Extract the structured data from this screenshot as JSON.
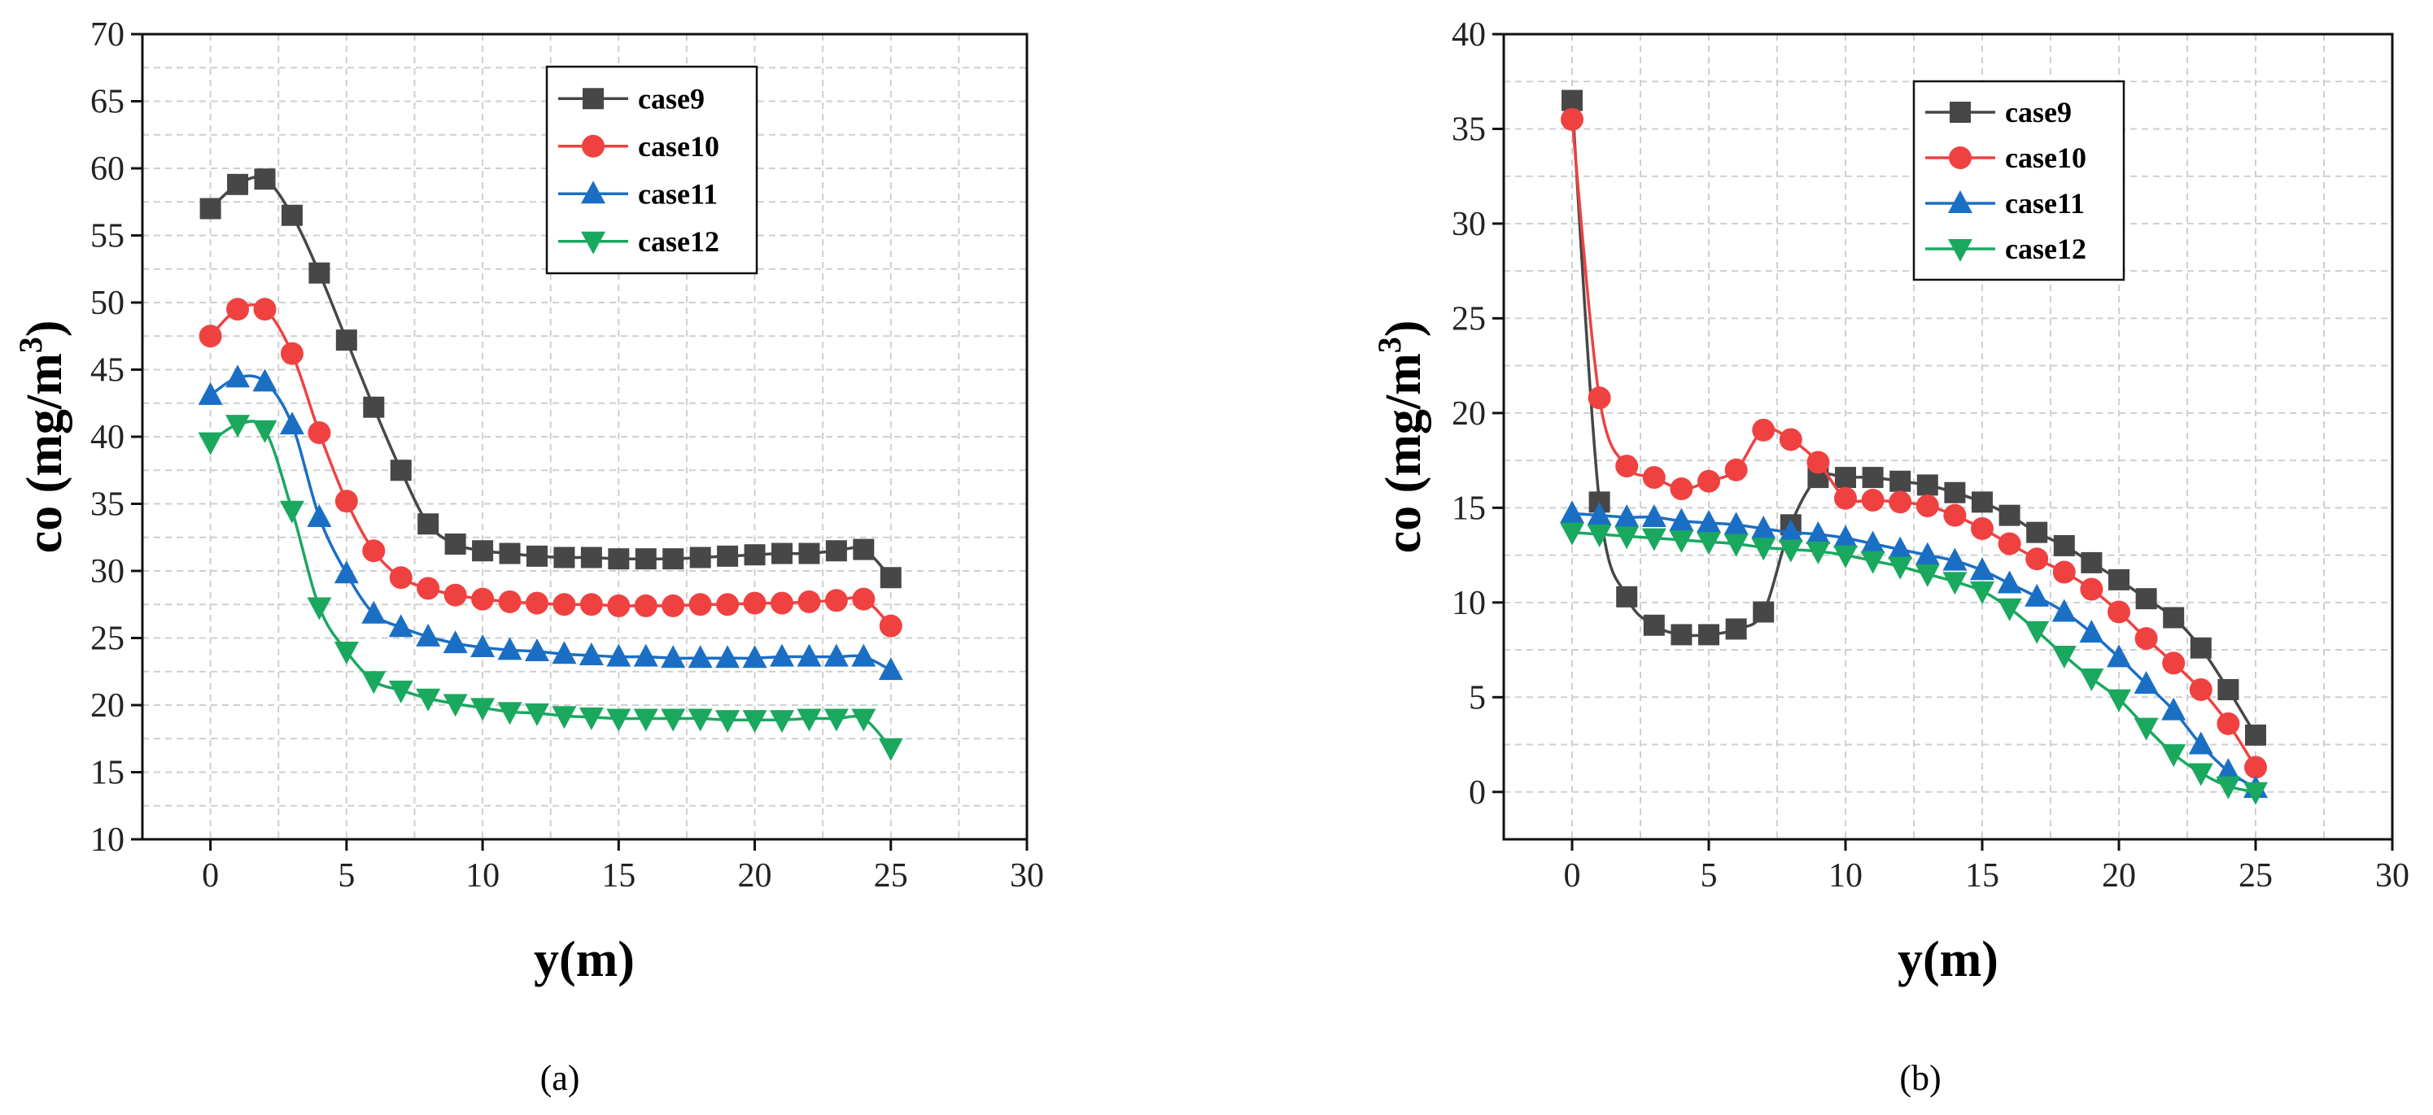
{
  "chart_data": [
    {
      "panel_label": "(a)",
      "type": "line",
      "xlabel": "y(m)",
      "ylabel": "co (mg/m",
      "ylabel_sup": "3",
      "ylabel_close": ")",
      "xlim": [
        -2.5,
        30
      ],
      "ylim": [
        10,
        70
      ],
      "xticks": [
        0,
        5,
        10,
        15,
        20,
        25,
        30
      ],
      "yticks": [
        10,
        15,
        20,
        25,
        30,
        35,
        40,
        45,
        50,
        55,
        60,
        65,
        70
      ],
      "grid": true,
      "legend_position": "top-center",
      "x": [
        0,
        1,
        2,
        3,
        4,
        5,
        6,
        7,
        8,
        9,
        10,
        11,
        12,
        13,
        14,
        15,
        16,
        17,
        18,
        19,
        20,
        21,
        22,
        23,
        24,
        25
      ],
      "series": [
        {
          "name": "case9",
          "color": "#474747",
          "marker": "square",
          "values": [
            57,
            58.8,
            59.2,
            56.5,
            52.2,
            47.2,
            42.2,
            37.5,
            33.5,
            32,
            31.5,
            31.3,
            31.1,
            31,
            31,
            30.9,
            30.9,
            30.9,
            31,
            31.1,
            31.2,
            31.3,
            31.3,
            31.5,
            31.6,
            29.5
          ]
        },
        {
          "name": "case10",
          "color": "#f04141",
          "marker": "circle",
          "values": [
            47.5,
            49.5,
            49.5,
            46.2,
            40.3,
            35.2,
            31.5,
            29.5,
            28.7,
            28.2,
            27.9,
            27.7,
            27.6,
            27.5,
            27.5,
            27.4,
            27.4,
            27.4,
            27.5,
            27.5,
            27.6,
            27.6,
            27.7,
            27.8,
            27.9,
            25.9
          ]
        },
        {
          "name": "case11",
          "color": "#1a6fc4",
          "marker": "triangle-up",
          "values": [
            43.1,
            44.4,
            44.1,
            40.9,
            34,
            29.8,
            26.8,
            25.8,
            25.1,
            24.6,
            24.3,
            24.1,
            24,
            23.8,
            23.7,
            23.6,
            23.6,
            23.5,
            23.5,
            23.5,
            23.5,
            23.6,
            23.6,
            23.6,
            23.6,
            22.6
          ]
        },
        {
          "name": "case12",
          "color": "#1aa85f",
          "marker": "triangle-down",
          "values": [
            39.6,
            40.9,
            40.5,
            34.5,
            27.3,
            24,
            21.8,
            21.1,
            20.5,
            20.1,
            19.8,
            19.5,
            19.4,
            19.2,
            19.1,
            19,
            19,
            19,
            19,
            18.9,
            18.9,
            18.9,
            19,
            19,
            19,
            16.8
          ]
        }
      ]
    },
    {
      "panel_label": "(b)",
      "type": "line",
      "xlabel": "y(m)",
      "ylabel": "co (mg/m",
      "ylabel_sup": "3",
      "ylabel_close": ")",
      "xlim": [
        -2.5,
        30
      ],
      "ylim": [
        -2.5,
        40
      ],
      "xticks": [
        0,
        5,
        10,
        15,
        20,
        25,
        30
      ],
      "yticks": [
        0,
        5,
        10,
        15,
        20,
        25,
        30,
        35,
        40
      ],
      "grid": true,
      "legend_position": "top-right",
      "x": [
        0,
        1,
        2,
        3,
        4,
        5,
        6,
        7,
        8,
        9,
        10,
        11,
        12,
        13,
        14,
        15,
        16,
        17,
        18,
        19,
        20,
        21,
        22,
        23,
        24,
        25
      ],
      "series": [
        {
          "name": "case9",
          "color": "#474747",
          "marker": "square",
          "values": [
            36.5,
            15.3,
            10.3,
            8.8,
            8.3,
            8.3,
            8.6,
            9.5,
            14.1,
            16.6,
            16.6,
            16.6,
            16.4,
            16.2,
            15.8,
            15.3,
            14.6,
            13.7,
            13,
            12.1,
            11.2,
            10.2,
            9.2,
            7.6,
            5.4,
            3
          ]
        },
        {
          "name": "case10",
          "color": "#f04141",
          "marker": "circle",
          "values": [
            35.5,
            20.8,
            17.2,
            16.6,
            16,
            16.4,
            17,
            19.1,
            18.6,
            17.4,
            15.5,
            15.4,
            15.3,
            15.1,
            14.6,
            13.9,
            13.1,
            12.3,
            11.6,
            10.7,
            9.5,
            8.1,
            6.8,
            5.4,
            3.6,
            1.3
          ]
        },
        {
          "name": "case11",
          "color": "#1a6fc4",
          "marker": "triangle-up",
          "values": [
            14.7,
            14.6,
            14.5,
            14.5,
            14.3,
            14.2,
            14.1,
            13.9,
            13.7,
            13.6,
            13.4,
            13.1,
            12.8,
            12.5,
            12.2,
            11.7,
            11,
            10.3,
            9.5,
            8.4,
            7.1,
            5.7,
            4.3,
            2.5,
            1.1,
            0.2
          ]
        },
        {
          "name": "case12",
          "color": "#1aa85f",
          "marker": "triangle-down",
          "values": [
            13.7,
            13.6,
            13.5,
            13.4,
            13.3,
            13.2,
            13.1,
            12.9,
            12.8,
            12.7,
            12.5,
            12.2,
            11.9,
            11.5,
            11.1,
            10.6,
            9.7,
            8.5,
            7.2,
            6,
            4.9,
            3.4,
            2,
            1,
            0.3,
            0
          ]
        }
      ]
    }
  ]
}
